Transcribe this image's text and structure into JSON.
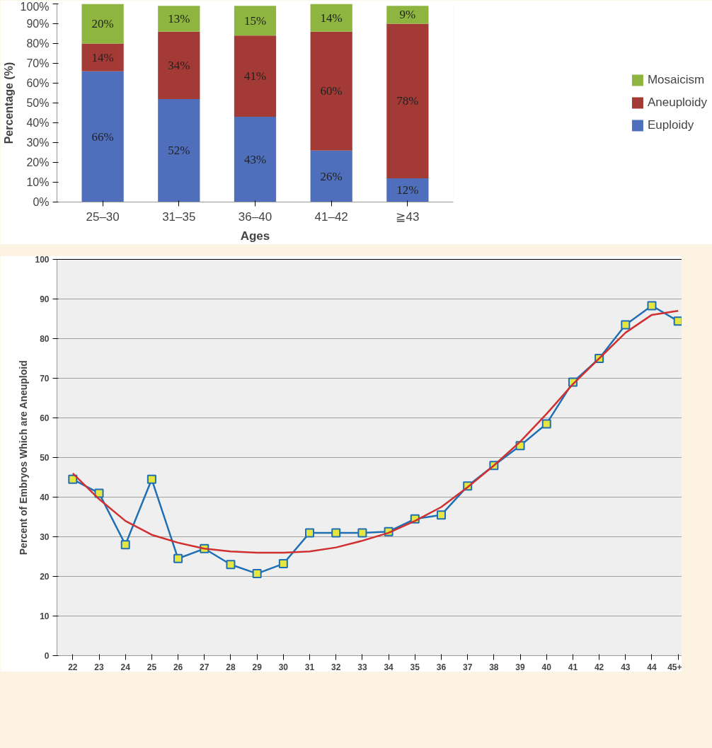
{
  "chart_data": [
    {
      "type": "bar",
      "stacked": true,
      "xlabel": "Ages",
      "ylabel": "Percentage (%)",
      "categories": [
        "25–30",
        "31–35",
        "36–40",
        "41–42",
        "≧43"
      ],
      "series": [
        {
          "name": "Euploidy",
          "color": "#4f6fbd",
          "values": [
            66,
            52,
            43,
            26,
            12
          ],
          "value_labels": [
            "66%",
            "52%",
            "43%",
            "26%",
            "12%"
          ]
        },
        {
          "name": "Aneuploidy",
          "color": "#a33a36",
          "values": [
            14,
            34,
            41,
            60,
            78
          ],
          "value_labels": [
            "14%",
            "34%",
            "41%",
            "60%",
            "78%"
          ]
        },
        {
          "name": "Mosaicism",
          "color": "#8db53f",
          "values": [
            20,
            13,
            15,
            14,
            9
          ],
          "value_labels": [
            "20%",
            "13%",
            "15%",
            "14%",
            "9%"
          ]
        }
      ],
      "ylim": [
        0,
        100
      ],
      "yticks": [
        {
          "value": 0,
          "label": "0%"
        },
        {
          "value": 10,
          "label": "10%"
        },
        {
          "value": 20,
          "label": "20%"
        },
        {
          "value": 30,
          "label": "30%"
        },
        {
          "value": 40,
          "label": "40%"
        },
        {
          "value": 50,
          "label": "50%"
        },
        {
          "value": 60,
          "label": "60%"
        },
        {
          "value": 70,
          "label": "70%"
        },
        {
          "value": 80,
          "label": "80%"
        },
        {
          "value": 90,
          "label": "90%"
        },
        {
          "value": 100,
          "label": "100%"
        }
      ],
      "grid": false,
      "legend": "right"
    },
    {
      "type": "line",
      "ylabel": "Percent of Embryos Which are Aneuploid",
      "categories": [
        "22",
        "23",
        "24",
        "25",
        "26",
        "27",
        "28",
        "29",
        "30",
        "31",
        "32",
        "33",
        "34",
        "35",
        "36",
        "37",
        "38",
        "39",
        "40",
        "41",
        "42",
        "43",
        "44",
        "45+"
      ],
      "series": [
        {
          "color": "#1f6fb4",
          "marker": "square",
          "values": [
            44.5,
            41,
            28,
            44.5,
            24.5,
            27,
            23,
            20.7,
            23.2,
            31,
            31,
            31,
            31.3,
            34.5,
            35.5,
            42.8,
            48,
            53,
            58.5,
            69,
            75,
            83.5,
            88.3,
            84.4
          ]
        },
        {
          "color": "#d03030",
          "marker": "none",
          "values": [
            46,
            39.5,
            34,
            30.5,
            28.5,
            27,
            26.3,
            26,
            26,
            26.3,
            27.3,
            29,
            31,
            34,
            37.5,
            42.5,
            48,
            54,
            61,
            68.5,
            75,
            81.5,
            86,
            87
          ]
        }
      ],
      "ylim": [
        0,
        100
      ],
      "yticks": [
        0,
        10,
        20,
        30,
        40,
        50,
        60,
        70,
        80,
        90,
        100
      ],
      "grid": "y"
    }
  ]
}
